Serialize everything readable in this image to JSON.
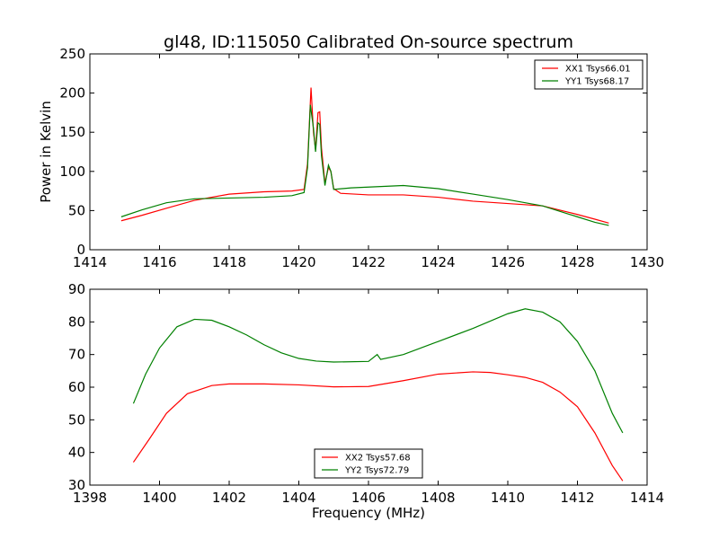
{
  "title": "gl48, ID:115050 Calibrated On-source spectrum",
  "chart_data": [
    {
      "type": "line",
      "ylabel": "Power in Kelvin",
      "xlabel": "",
      "xlim": [
        1414,
        1430
      ],
      "ylim": [
        0,
        250
      ],
      "x_ticks": [
        1414,
        1416,
        1418,
        1420,
        1422,
        1424,
        1426,
        1428,
        1430
      ],
      "y_ticks": [
        0,
        50,
        100,
        150,
        200,
        250
      ],
      "grid": false,
      "legend_position": "upper right",
      "series": [
        {
          "name": "XX1 Tsys66.01",
          "color": "#ff0000",
          "points": [
            [
              1414.9,
              37
            ],
            [
              1415.5,
              44
            ],
            [
              1416.2,
              53
            ],
            [
              1417.0,
              63
            ],
            [
              1418.0,
              71
            ],
            [
              1419.0,
              74
            ],
            [
              1419.8,
              75
            ],
            [
              1420.15,
              77
            ],
            [
              1420.25,
              110
            ],
            [
              1420.35,
              207
            ],
            [
              1420.42,
              150
            ],
            [
              1420.48,
              128
            ],
            [
              1420.55,
              175
            ],
            [
              1420.6,
              176
            ],
            [
              1420.65,
              130
            ],
            [
              1420.75,
              85
            ],
            [
              1420.85,
              105
            ],
            [
              1420.92,
              100
            ],
            [
              1421.0,
              78
            ],
            [
              1421.2,
              72
            ],
            [
              1422.0,
              70
            ],
            [
              1423.0,
              70
            ],
            [
              1424.0,
              67
            ],
            [
              1425.0,
              62
            ],
            [
              1426.0,
              59
            ],
            [
              1427.0,
              56
            ],
            [
              1428.0,
              45
            ],
            [
              1428.5,
              39
            ],
            [
              1428.9,
              34
            ]
          ]
        },
        {
          "name": "YY1 Tsys68.17",
          "color": "#008000",
          "points": [
            [
              1414.9,
              42
            ],
            [
              1415.5,
              51
            ],
            [
              1416.2,
              60
            ],
            [
              1417.0,
              65
            ],
            [
              1418.0,
              66
            ],
            [
              1419.0,
              67
            ],
            [
              1419.8,
              69
            ],
            [
              1420.15,
              73
            ],
            [
              1420.25,
              105
            ],
            [
              1420.33,
              185
            ],
            [
              1420.42,
              155
            ],
            [
              1420.48,
              125
            ],
            [
              1420.55,
              162
            ],
            [
              1420.6,
              160
            ],
            [
              1420.65,
              120
            ],
            [
              1420.75,
              82
            ],
            [
              1420.85,
              108
            ],
            [
              1420.92,
              100
            ],
            [
              1421.0,
              77
            ],
            [
              1421.5,
              79
            ],
            [
              1422.0,
              80
            ],
            [
              1423.0,
              82
            ],
            [
              1424.0,
              78
            ],
            [
              1425.0,
              71
            ],
            [
              1426.0,
              64
            ],
            [
              1427.0,
              56
            ],
            [
              1428.0,
              42
            ],
            [
              1428.5,
              35
            ],
            [
              1428.9,
              31
            ]
          ]
        }
      ]
    },
    {
      "type": "line",
      "ylabel": "",
      "xlabel": "Frequency (MHz)",
      "xlim": [
        1398,
        1414
      ],
      "ylim": [
        30,
        90
      ],
      "x_ticks": [
        1398,
        1400,
        1402,
        1404,
        1406,
        1408,
        1410,
        1412,
        1414
      ],
      "y_ticks": [
        30,
        40,
        50,
        60,
        70,
        80,
        90
      ],
      "grid": false,
      "legend_position": "lower center",
      "series": [
        {
          "name": "XX2 Tsys57.68",
          "color": "#ff0000",
          "points": [
            [
              1399.25,
              37
            ],
            [
              1399.7,
              44
            ],
            [
              1400.2,
              52
            ],
            [
              1400.8,
              58
            ],
            [
              1401.5,
              60.5
            ],
            [
              1402.0,
              61
            ],
            [
              1403.0,
              61
            ],
            [
              1404.0,
              60.7
            ],
            [
              1405.0,
              60.1
            ],
            [
              1406.0,
              60.2
            ],
            [
              1407.0,
              62
            ],
            [
              1408.0,
              64
            ],
            [
              1409.0,
              64.7
            ],
            [
              1409.5,
              64.5
            ],
            [
              1410.0,
              63.8
            ],
            [
              1410.5,
              63
            ],
            [
              1411.0,
              61.5
            ],
            [
              1411.5,
              58.5
            ],
            [
              1412.0,
              54
            ],
            [
              1412.5,
              46
            ],
            [
              1413.0,
              36
            ],
            [
              1413.3,
              31.3
            ]
          ]
        },
        {
          "name": "YY2 Tsys72.79",
          "color": "#008000",
          "points": [
            [
              1399.25,
              55
            ],
            [
              1399.6,
              64
            ],
            [
              1400.0,
              72
            ],
            [
              1400.5,
              78.5
            ],
            [
              1401.0,
              80.8
            ],
            [
              1401.5,
              80.5
            ],
            [
              1402.0,
              78.5
            ],
            [
              1402.5,
              76
            ],
            [
              1403.0,
              73
            ],
            [
              1403.5,
              70.5
            ],
            [
              1404.0,
              68.8
            ],
            [
              1404.5,
              68
            ],
            [
              1405.0,
              67.7
            ],
            [
              1406.0,
              67.9
            ],
            [
              1406.25,
              70
            ],
            [
              1406.35,
              68.5
            ],
            [
              1407.0,
              70
            ],
            [
              1408.0,
              74
            ],
            [
              1409.0,
              78
            ],
            [
              1410.0,
              82.5
            ],
            [
              1410.5,
              84
            ],
            [
              1411.0,
              83
            ],
            [
              1411.5,
              80
            ],
            [
              1412.0,
              74
            ],
            [
              1412.5,
              65
            ],
            [
              1413.0,
              52
            ],
            [
              1413.3,
              46
            ]
          ]
        }
      ]
    }
  ]
}
